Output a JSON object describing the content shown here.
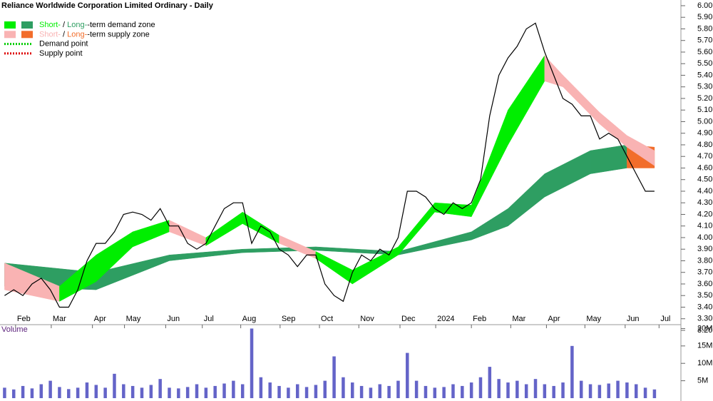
{
  "chart_data": {
    "type": "line",
    "title": "Reliance Worldwide Corporation Limited Ordinary - Daily",
    "legend": [
      {
        "parts": [
          "Short-",
          " / ",
          "Long-",
          "-term demand zone"
        ],
        "zone": "demand"
      },
      {
        "parts": [
          "Short-",
          " / ",
          "Long-",
          "-term supply zone"
        ],
        "zone": "supply"
      },
      {
        "label": "Demand point",
        "color": "#00cc00"
      },
      {
        "label": "Supply point",
        "color": "#dd0000"
      }
    ],
    "xlim": [
      -0.5,
      73.5
    ],
    "xticks": [
      {
        "value": 1.2,
        "label": "Feb"
      },
      {
        "value": 5.1,
        "label": "Mar"
      },
      {
        "value": 9.6,
        "label": "Apr"
      },
      {
        "value": 13.1,
        "label": "May"
      },
      {
        "value": 17.6,
        "label": "Jun"
      },
      {
        "value": 21.6,
        "label": "Jul"
      },
      {
        "value": 25.8,
        "label": "Aug"
      },
      {
        "value": 30.1,
        "label": "Sep"
      },
      {
        "value": 34.4,
        "label": "Oct"
      },
      {
        "value": 38.7,
        "label": "Nov"
      },
      {
        "value": 43.2,
        "label": "Dec"
      },
      {
        "value": 47.1,
        "label": "2024"
      },
      {
        "value": 51.0,
        "label": "Feb"
      },
      {
        "value": 55.3,
        "label": "Mar"
      },
      {
        "value": 59.2,
        "label": "Apr"
      },
      {
        "value": 63.4,
        "label": "May"
      },
      {
        "value": 67.8,
        "label": "Jun"
      },
      {
        "value": 71.5,
        "label": "Jul"
      }
    ],
    "ylim": [
      3.15,
      6.03
    ],
    "yticks": [
      {
        "value": 3.2,
        "label": "3.20"
      },
      {
        "value": 3.3,
        "label": "3.30"
      },
      {
        "value": 3.4,
        "label": "3.40"
      },
      {
        "value": 3.5,
        "label": "3.50"
      },
      {
        "value": 3.6,
        "label": "3.60"
      },
      {
        "value": 3.7,
        "label": "3.70"
      },
      {
        "value": 3.8,
        "label": "3.80"
      },
      {
        "value": 3.9,
        "label": "3.90"
      },
      {
        "value": 4.0,
        "label": "4.00"
      },
      {
        "value": 4.1,
        "label": "4.10"
      },
      {
        "value": 4.2,
        "label": "4.20"
      },
      {
        "value": 4.3,
        "label": "4.30"
      },
      {
        "value": 4.4,
        "label": "4.40"
      },
      {
        "value": 4.5,
        "label": "4.50"
      },
      {
        "value": 4.6,
        "label": "4.60"
      },
      {
        "value": 4.7,
        "label": "4.70"
      },
      {
        "value": 4.8,
        "label": "4.80"
      },
      {
        "value": 4.9,
        "label": "4.90"
      },
      {
        "value": 5.0,
        "label": "5.00"
      },
      {
        "value": 5.1,
        "label": "5.10"
      },
      {
        "value": 5.2,
        "label": "5.20"
      },
      {
        "value": 5.3,
        "label": "5.30"
      },
      {
        "value": 5.4,
        "label": "5.40"
      },
      {
        "value": 5.5,
        "label": "5.50"
      },
      {
        "value": 5.6,
        "label": "5.60"
      },
      {
        "value": 5.7,
        "label": "5.70"
      },
      {
        "value": 5.8,
        "label": "5.80"
      },
      {
        "value": 5.9,
        "label": "5.90"
      },
      {
        "value": 6.0,
        "label": "6.00"
      }
    ],
    "price": {
      "color": "#000000",
      "x": [
        0,
        1,
        2,
        3,
        4,
        5,
        6,
        7,
        8,
        9,
        10,
        11,
        12,
        13,
        14,
        15,
        16,
        17,
        18,
        19,
        20,
        21,
        22,
        23,
        24,
        25,
        26,
        27,
        28,
        29,
        30,
        31,
        32,
        33,
        34,
        35,
        36,
        37,
        38,
        39,
        40,
        41,
        42,
        43,
        44,
        45,
        46,
        47,
        48,
        49,
        50,
        51,
        52,
        53,
        54,
        55,
        56,
        57,
        58,
        59,
        60,
        61,
        62,
        63,
        64,
        65,
        66,
        67,
        68,
        69,
        70,
        71
      ],
      "values": [
        3.5,
        3.55,
        3.5,
        3.6,
        3.65,
        3.55,
        3.4,
        3.4,
        3.55,
        3.8,
        3.95,
        3.95,
        4.05,
        4.2,
        4.22,
        4.2,
        4.15,
        4.25,
        4.1,
        4.1,
        3.95,
        3.9,
        3.95,
        4.1,
        4.25,
        4.3,
        4.3,
        3.95,
        4.1,
        4.05,
        3.9,
        3.85,
        3.75,
        3.85,
        3.85,
        3.6,
        3.5,
        3.45,
        3.7,
        3.85,
        3.8,
        3.9,
        3.85,
        4.0,
        4.4,
        4.4,
        4.35,
        4.25,
        4.2,
        4.3,
        4.25,
        4.3,
        4.5,
        5.05,
        5.4,
        5.55,
        5.65,
        5.8,
        5.85,
        5.6,
        5.4,
        5.2,
        5.15,
        5.05,
        5.05,
        4.85,
        4.9,
        4.85,
        4.7,
        4.55,
        4.4,
        4.4
      ]
    },
    "bands": [
      {
        "demand_color": "#00ee00",
        "supply_color": "#f9b3b3",
        "x": [
          0,
          6,
          10,
          14,
          18,
          22,
          26,
          30,
          34,
          38,
          43,
          47,
          51,
          55,
          59,
          61,
          65,
          68,
          71
        ],
        "upper": [
          3.78,
          3.58,
          3.85,
          4.05,
          4.15,
          4.0,
          4.22,
          4.02,
          3.88,
          3.72,
          3.92,
          4.3,
          4.28,
          5.1,
          5.57,
          5.4,
          5.08,
          4.88,
          4.75
        ],
        "lower": [
          3.55,
          3.45,
          3.62,
          3.92,
          4.05,
          3.93,
          4.12,
          3.95,
          3.82,
          3.6,
          3.85,
          4.22,
          4.18,
          4.8,
          5.35,
          5.3,
          4.98,
          4.78,
          4.62
        ]
      },
      {
        "demand_color": "#2e9e62",
        "supply_color": "#f26d2b",
        "x": [
          0,
          10,
          18,
          26,
          34,
          43,
          51,
          55,
          59,
          64,
          68,
          71
        ],
        "upper": [
          3.78,
          3.7,
          3.85,
          3.9,
          3.92,
          3.88,
          4.05,
          4.25,
          4.55,
          4.75,
          4.8,
          4.78
        ],
        "lower": [
          3.58,
          3.55,
          3.8,
          3.87,
          3.89,
          3.85,
          3.98,
          4.1,
          4.35,
          4.55,
          4.6,
          4.6
        ]
      }
    ],
    "volume": {
      "label": "Volume",
      "color": "#6464c8",
      "ylim": [
        0,
        20500000
      ],
      "yticks": [
        {
          "value": 5000000,
          "label": "5M"
        },
        {
          "value": 10000000,
          "label": "10M"
        },
        {
          "value": 15000000,
          "label": "15M"
        },
        {
          "value": 20000000,
          "label": "20M"
        }
      ],
      "values": [
        3000000,
        2500000,
        3500000,
        2800000,
        4000000,
        5000000,
        3200000,
        2600000,
        3000000,
        4500000,
        3800000,
        3000000,
        7000000,
        4000000,
        3500000,
        3000000,
        3800000,
        5500000,
        3000000,
        2800000,
        3200000,
        4000000,
        3000000,
        3500000,
        4200000,
        5000000,
        4000000,
        20000000,
        6000000,
        4500000,
        3500000,
        3000000,
        4000000,
        3200000,
        3800000,
        5000000,
        12000000,
        6000000,
        4500000,
        3500000,
        3000000,
        4000000,
        3500000,
        5000000,
        13000000,
        5000000,
        3500000,
        3000000,
        3200000,
        4000000,
        3500000,
        4500000,
        6000000,
        9000000,
        5500000,
        4500000,
        5000000,
        4000000,
        5500000,
        4000000,
        3500000,
        4500000,
        15000000,
        5000000,
        4000000,
        3800000,
        4200000,
        5000000,
        4500000,
        4000000,
        3000000,
        2500000
      ]
    }
  }
}
